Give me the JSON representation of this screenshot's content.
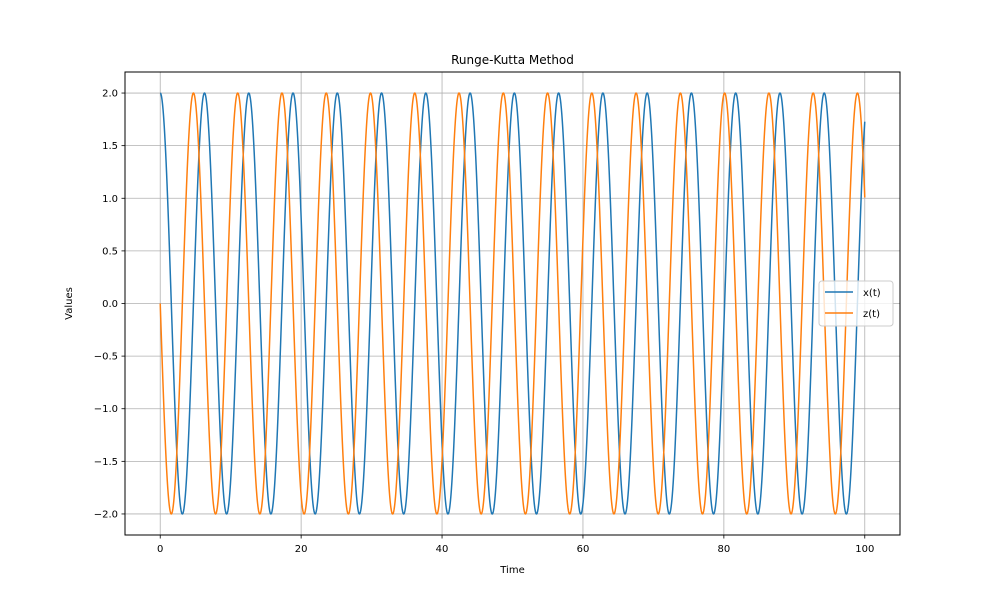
{
  "chart_data": {
    "type": "line",
    "title": "Runge-Kutta Method",
    "xlabel": "Time",
    "ylabel": "Values",
    "xlim": [
      -5,
      105
    ],
    "ylim": [
      -2.2,
      2.2
    ],
    "xticks": [
      0,
      20,
      40,
      60,
      80,
      100
    ],
    "xtick_labels": [
      "0",
      "20",
      "40",
      "60",
      "80",
      "100"
    ],
    "yticks": [
      -2.0,
      -1.5,
      -1.0,
      -0.5,
      0.0,
      0.5,
      1.0,
      1.5,
      2.0
    ],
    "ytick_labels": [
      "−2.0",
      "−1.5",
      "−1.0",
      "−0.5",
      "0.0",
      "0.5",
      "1.0",
      "1.5",
      "2.0"
    ],
    "grid": true,
    "legend_position": "center-right",
    "series": [
      {
        "name": "x(t)",
        "color": "#1f77b4",
        "amplitude": 2.0,
        "period": 6.283,
        "phase": "cos",
        "x_start": 0,
        "x_end": 100
      },
      {
        "name": "z(t)",
        "color": "#ff7f0e",
        "amplitude": 2.0,
        "period": 6.283,
        "phase": "-sin",
        "x_start": 0,
        "x_end": 100
      }
    ]
  }
}
